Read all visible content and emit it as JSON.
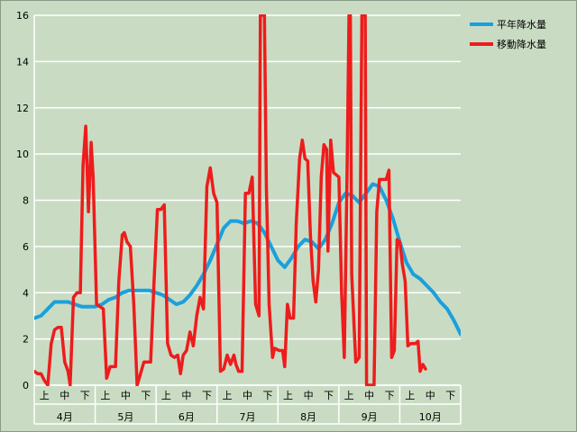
{
  "chart_data": {
    "type": "line",
    "ylim": [
      0,
      16
    ],
    "yticks": [
      "0",
      "2",
      "4",
      "6",
      "8",
      "10",
      "12",
      "14",
      "16"
    ],
    "xlim": [
      0,
      63
    ],
    "months": [
      "4月",
      "5月",
      "6月",
      "7月",
      "8月",
      "9月",
      "10月"
    ],
    "decades": [
      "上",
      "中",
      "下"
    ],
    "legend_position": "right",
    "grid": true,
    "series": [
      {
        "name": "平年降水量",
        "color": "#1aa0dc",
        "points": [
          [
            0,
            2.9
          ],
          [
            1,
            3.0
          ],
          [
            2,
            3.3
          ],
          [
            3,
            3.6
          ],
          [
            4,
            3.6
          ],
          [
            5,
            3.6
          ],
          [
            6,
            3.5
          ],
          [
            7,
            3.4
          ],
          [
            8,
            3.4
          ],
          [
            9,
            3.4
          ],
          [
            10,
            3.5
          ],
          [
            11,
            3.7
          ],
          [
            12,
            3.8
          ],
          [
            13,
            4.0
          ],
          [
            14,
            4.1
          ],
          [
            15,
            4.1
          ],
          [
            16,
            4.1
          ],
          [
            17,
            4.1
          ],
          [
            18,
            4.0
          ],
          [
            19,
            3.9
          ],
          [
            20,
            3.7
          ],
          [
            21,
            3.5
          ],
          [
            22,
            3.6
          ],
          [
            23,
            3.9
          ],
          [
            24,
            4.3
          ],
          [
            25,
            4.8
          ],
          [
            26,
            5.4
          ],
          [
            27,
            6.1
          ],
          [
            28,
            6.8
          ],
          [
            29,
            7.1
          ],
          [
            30,
            7.1
          ],
          [
            31,
            7.0
          ],
          [
            32,
            7.1
          ],
          [
            33,
            7.0
          ],
          [
            34,
            6.6
          ],
          [
            35,
            6.0
          ],
          [
            36,
            5.4
          ],
          [
            37,
            5.1
          ],
          [
            38,
            5.5
          ],
          [
            39,
            6.0
          ],
          [
            40,
            6.3
          ],
          [
            41,
            6.2
          ],
          [
            42,
            5.9
          ],
          [
            43,
            6.3
          ],
          [
            44,
            7.0
          ],
          [
            45,
            7.9
          ],
          [
            46,
            8.3
          ],
          [
            47,
            8.2
          ],
          [
            48,
            7.9
          ],
          [
            49,
            8.3
          ],
          [
            50,
            8.7
          ],
          [
            51,
            8.6
          ],
          [
            52,
            8.0
          ],
          [
            53,
            7.2
          ],
          [
            54,
            6.2
          ],
          [
            55,
            5.3
          ],
          [
            56,
            4.8
          ],
          [
            57,
            4.6
          ],
          [
            58,
            4.3
          ],
          [
            59,
            4.0
          ],
          [
            60,
            3.6
          ],
          [
            61,
            3.3
          ],
          [
            62,
            2.8
          ],
          [
            63,
            2.2
          ]
        ]
      },
      {
        "name": "移動降水量",
        "color": "#ee1c1c",
        "points": [
          [
            0,
            0.6
          ],
          [
            0.5,
            0.5
          ],
          [
            1,
            0.5
          ],
          [
            1.5,
            0.2
          ],
          [
            2,
            0.0
          ],
          [
            2.5,
            1.8
          ],
          [
            3,
            2.4
          ],
          [
            3.5,
            2.5
          ],
          [
            4,
            2.5
          ],
          [
            4.5,
            1.0
          ],
          [
            5,
            0.6
          ],
          [
            5.3,
            0.0
          ],
          [
            5.8,
            3.8
          ],
          [
            6.3,
            4.0
          ],
          [
            6.8,
            4.0
          ],
          [
            7.2,
            9.5
          ],
          [
            7.6,
            11.2
          ],
          [
            8.0,
            7.5
          ],
          [
            8.4,
            10.5
          ],
          [
            8.7,
            9.0
          ],
          [
            9.2,
            3.5
          ],
          [
            9.7,
            3.4
          ],
          [
            10.2,
            3.3
          ],
          [
            10.7,
            0.3
          ],
          [
            11.2,
            0.8
          ],
          [
            12,
            0.8
          ],
          [
            12.5,
            4.5
          ],
          [
            13,
            6.5
          ],
          [
            13.3,
            6.6
          ],
          [
            13.7,
            6.2
          ],
          [
            14.2,
            6.0
          ],
          [
            14.7,
            3.5
          ],
          [
            15.2,
            0.0
          ],
          [
            15.7,
            0.5
          ],
          [
            16.2,
            1.0
          ],
          [
            17.2,
            1.0
          ],
          [
            17.7,
            4.5
          ],
          [
            18.2,
            7.6
          ],
          [
            18.7,
            7.6
          ],
          [
            19.2,
            7.8
          ],
          [
            19.7,
            1.8
          ],
          [
            20.2,
            1.3
          ],
          [
            20.7,
            1.2
          ],
          [
            21.2,
            1.3
          ],
          [
            21.6,
            0.5
          ],
          [
            22,
            1.3
          ],
          [
            22.5,
            1.5
          ],
          [
            23,
            2.3
          ],
          [
            23.5,
            1.7
          ],
          [
            24,
            3.0
          ],
          [
            24.5,
            3.8
          ],
          [
            25,
            3.3
          ],
          [
            25.5,
            8.6
          ],
          [
            26,
            9.4
          ],
          [
            26.5,
            8.3
          ],
          [
            27,
            7.9
          ],
          [
            27.5,
            0.6
          ],
          [
            28,
            0.7
          ],
          [
            28.5,
            1.3
          ],
          [
            29,
            0.9
          ],
          [
            29.5,
            1.3
          ],
          [
            29.8,
            0.9
          ],
          [
            30.2,
            0.6
          ],
          [
            30.7,
            0.6
          ],
          [
            31.2,
            8.3
          ],
          [
            31.7,
            8.3
          ],
          [
            32.2,
            9.0
          ],
          [
            32.7,
            3.5
          ],
          [
            33.2,
            3.0
          ],
          [
            33.4,
            16
          ],
          [
            33.8,
            16
          ],
          [
            34.0,
            16
          ],
          [
            34.3,
            8.5
          ],
          [
            34.7,
            3.5
          ],
          [
            35.2,
            1.2
          ],
          [
            35.5,
            1.6
          ],
          [
            36.2,
            1.5
          ],
          [
            36.7,
            1.5
          ],
          [
            37,
            0.8
          ],
          [
            37.4,
            3.5
          ],
          [
            37.8,
            2.9
          ],
          [
            38.3,
            2.9
          ],
          [
            38.7,
            7.0
          ],
          [
            39.2,
            9.8
          ],
          [
            39.6,
            10.6
          ],
          [
            40,
            9.8
          ],
          [
            40.4,
            9.7
          ],
          [
            40.8,
            6.5
          ],
          [
            41.2,
            4.5
          ],
          [
            41.6,
            3.6
          ],
          [
            42,
            5.0
          ],
          [
            42.4,
            9.0
          ],
          [
            42.8,
            10.4
          ],
          [
            43.2,
            10.2
          ],
          [
            43.4,
            5.8
          ],
          [
            43.8,
            10.6
          ],
          [
            44.2,
            9.2
          ],
          [
            45.0,
            9.0
          ],
          [
            45.4,
            4.0
          ],
          [
            45.8,
            1.2
          ],
          [
            46.2,
            9.0
          ],
          [
            46.5,
            16
          ],
          [
            46.7,
            16
          ],
          [
            46.9,
            4.8
          ],
          [
            47.5,
            1.0
          ],
          [
            48.0,
            1.2
          ],
          [
            48.4,
            16
          ],
          [
            48.9,
            16
          ],
          [
            49.1,
            0.0
          ],
          [
            50.2,
            0.0
          ],
          [
            50.6,
            7.5
          ],
          [
            51.0,
            8.9
          ],
          [
            52.0,
            8.9
          ],
          [
            52.4,
            9.3
          ],
          [
            52.8,
            1.2
          ],
          [
            53.2,
            1.5
          ],
          [
            53.6,
            6.3
          ],
          [
            54.0,
            6.2
          ],
          [
            54.4,
            5.2
          ],
          [
            54.8,
            4.5
          ],
          [
            55.2,
            1.7
          ],
          [
            55.6,
            1.8
          ],
          [
            56.3,
            1.8
          ],
          [
            56.7,
            1.9
          ],
          [
            57.0,
            0.6
          ],
          [
            57.4,
            0.9
          ],
          [
            57.8,
            0.7
          ]
        ]
      }
    ]
  }
}
